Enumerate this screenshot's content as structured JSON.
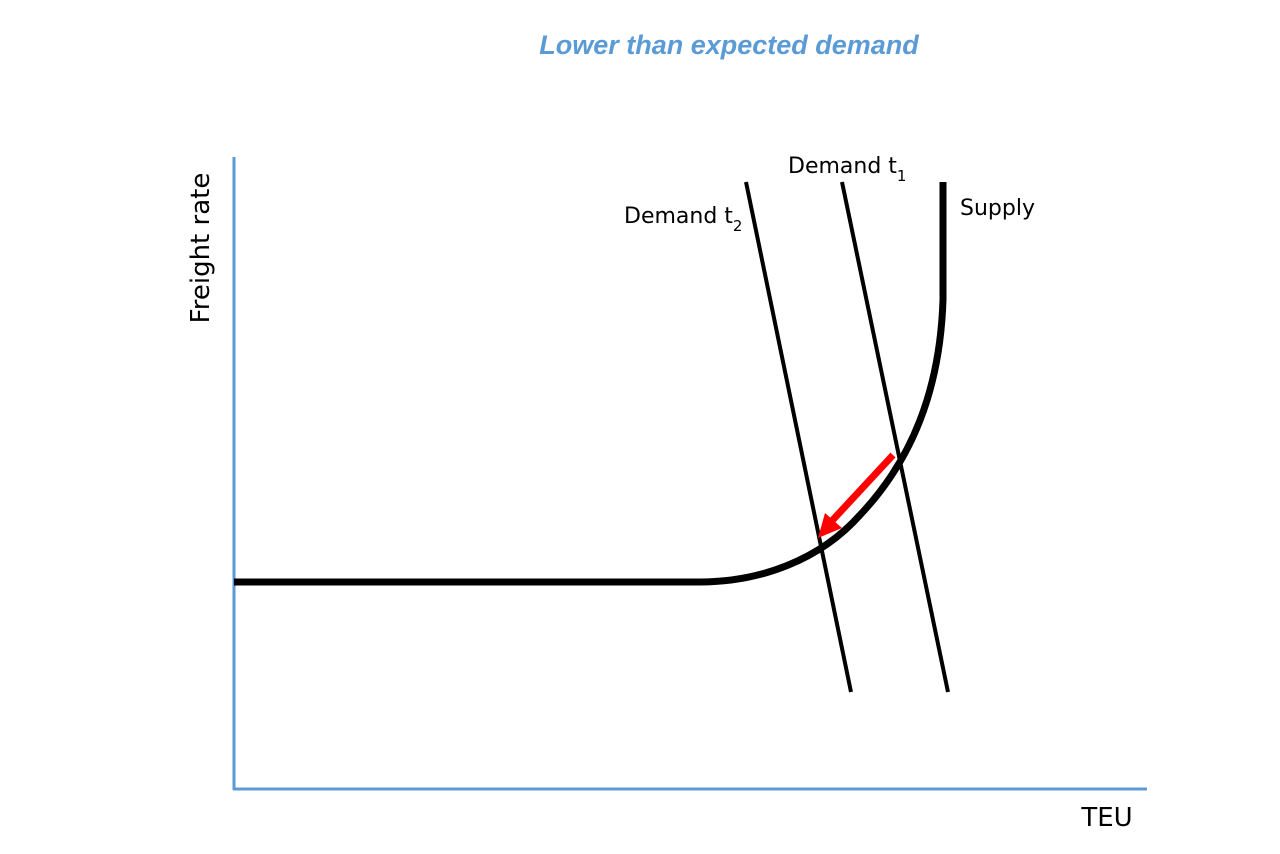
{
  "title": "Lower than expected demand",
  "axes": {
    "y_label": "Freight rate",
    "x_label": "TEU",
    "color": "#5b9bd5"
  },
  "curves": {
    "supply_label": "Supply",
    "demand_t1_label": "Demand t",
    "demand_t1_subscript": "1",
    "demand_t2_label": "Demand t",
    "demand_t2_subscript": "2",
    "curve_color": "#000000"
  },
  "shift_arrow": {
    "color": "#ff0000",
    "direction": "down-left along supply curve"
  },
  "colors": {
    "title": "#5b9bd5",
    "axis": "#5b9bd5",
    "curves": "#000000",
    "arrow": "#ff0000"
  }
}
